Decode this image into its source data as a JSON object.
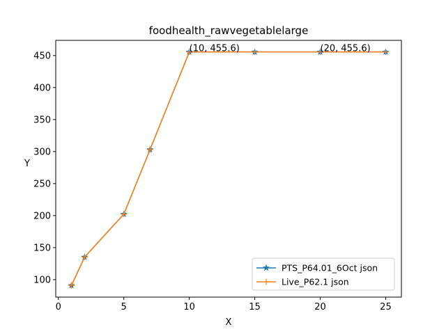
{
  "chart_data": {
    "type": "line",
    "title": "foodhealth_rawvegetablelarge",
    "xlabel": "X",
    "ylabel": "Y",
    "xlim": [
      -0.2,
      26.2
    ],
    "ylim": [
      72.7,
      473.7
    ],
    "xticks": [
      0,
      5,
      10,
      15,
      20,
      25
    ],
    "yticks": [
      100,
      150,
      200,
      250,
      300,
      350,
      400,
      450
    ],
    "grid": false,
    "legend_position": "lower-right",
    "series": [
      {
        "name": "PTS_P64.01_6Oct json",
        "color": "#1f77b4",
        "marker": "star",
        "x": [
          1,
          2,
          5,
          7,
          10,
          15,
          20,
          25
        ],
        "y": [
          90.9,
          135.2,
          202.3,
          303.1,
          455.6,
          455.6,
          455.6,
          455.6
        ]
      },
      {
        "name": "Live_P62.1 json",
        "color": "#ff7f0e",
        "marker": "plus",
        "x": [
          1,
          2,
          5,
          7,
          10,
          15,
          20,
          25
        ],
        "y": [
          90.9,
          135.2,
          202.3,
          303.1,
          455.6,
          455.6,
          455.6,
          455.6
        ]
      }
    ],
    "annotations": [
      {
        "x": 10,
        "y": 455.6,
        "text": "(10, 455.6)"
      },
      {
        "x": 20,
        "y": 455.6,
        "text": "(20, 455.6)"
      }
    ]
  }
}
